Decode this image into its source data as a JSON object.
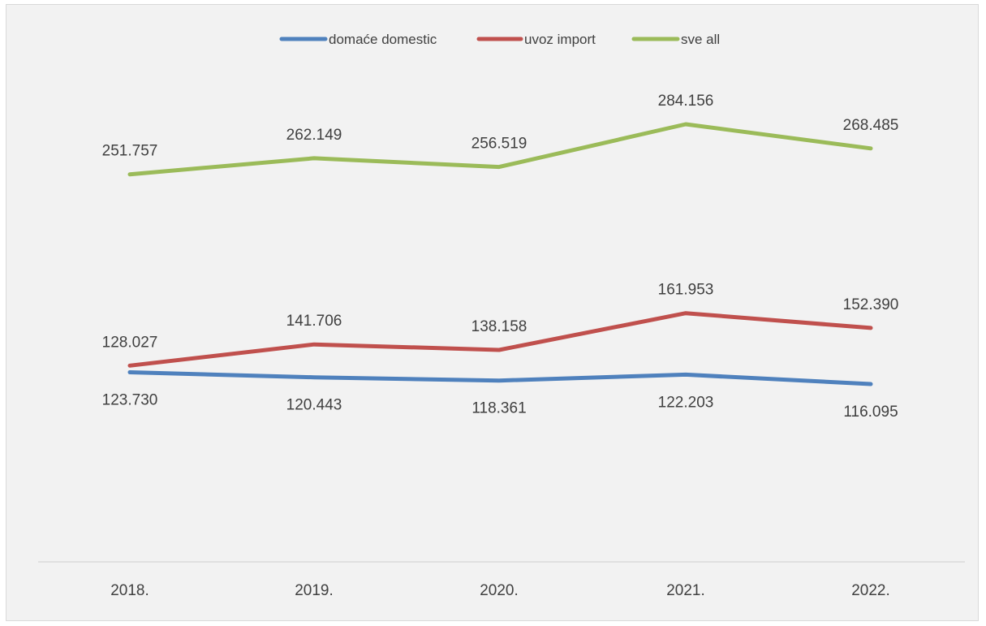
{
  "chart_data": {
    "type": "line",
    "categories": [
      "2018.",
      "2019.",
      "2020.",
      "2021.",
      "2022."
    ],
    "series": [
      {
        "name": "domaće domestic",
        "color": "#4f81bd",
        "values": [
          123.73,
          120.443,
          118.361,
          122.203,
          116.095
        ],
        "labels": [
          "123.730",
          "120.443",
          "118.361",
          "122.203",
          "116.095"
        ],
        "label_position": "below"
      },
      {
        "name": "uvoz import",
        "color": "#c0504d",
        "values": [
          128.027,
          141.706,
          138.158,
          161.953,
          152.39
        ],
        "labels": [
          "128.027",
          "141.706",
          "138.158",
          "161.953",
          "152.390"
        ],
        "label_position": "above"
      },
      {
        "name": "sve all",
        "color": "#9bbb59",
        "values": [
          251.757,
          262.149,
          256.519,
          284.156,
          268.485
        ],
        "labels": [
          "251.757",
          "262.149",
          "256.519",
          "284.156",
          "268.485"
        ],
        "label_position": "above"
      }
    ],
    "ylim": [
      0,
      300
    ],
    "grid": false,
    "legend": "top-center"
  }
}
